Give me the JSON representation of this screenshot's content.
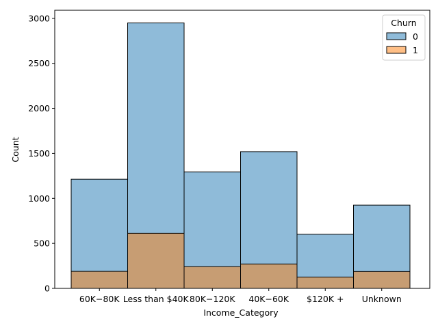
{
  "chart_data": {
    "type": "bar",
    "xlabel": "Income_Category",
    "ylabel": "Count",
    "categories": [
      "$60K - $80K",
      "Less than $40K",
      "$80K - $120K",
      "$40K - $60K",
      "$120K +",
      "Unknown"
    ],
    "category_tick_labels": [
      "60K−80K",
      "Less than $40K",
      "80K−120K",
      "40K−60K",
      "$120K +",
      "Unknown"
    ],
    "series": [
      {
        "name": "0",
        "color": "#1f77b4",
        "values": [
          1213,
          2949,
          1293,
          1519,
          601,
          925
        ]
      },
      {
        "name": "1",
        "color": "#ff7f0e",
        "values": [
          189,
          612,
          242,
          271,
          126,
          187
        ]
      }
    ],
    "ylim": [
      0,
      3090
    ],
    "yticks": [
      0,
      500,
      1000,
      1500,
      2000,
      2500,
      3000
    ],
    "grid": false,
    "legend": {
      "title": "Churn",
      "placement": "top-right"
    }
  }
}
